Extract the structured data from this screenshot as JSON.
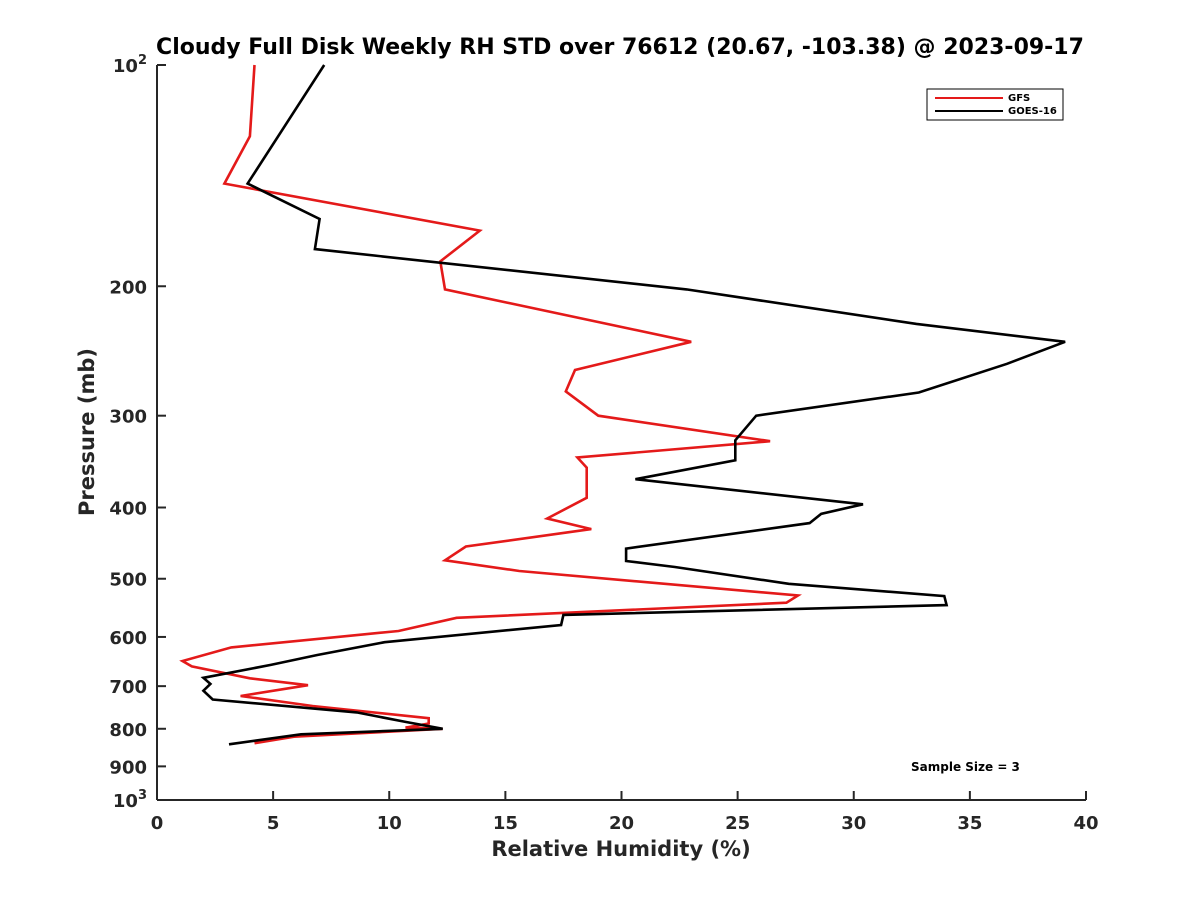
{
  "chart_data": {
    "type": "line",
    "title": "Cloudy Full Disk Weekly RH STD over 76612 (20.67, -103.38) @ 2023-09-17",
    "xlabel": "Relative Humidity (%)",
    "ylabel": "Pressure (mb)",
    "xlim": [
      0,
      40
    ],
    "ylim": [
      100,
      1000
    ],
    "yscale": "log",
    "y_reversed": true,
    "grid": false,
    "x_ticks": [
      {
        "value": 0,
        "label": "0"
      },
      {
        "value": 5,
        "label": "5"
      },
      {
        "value": 10,
        "label": "10"
      },
      {
        "value": 15,
        "label": "15"
      },
      {
        "value": 20,
        "label": "20"
      },
      {
        "value": 25,
        "label": "25"
      },
      {
        "value": 30,
        "label": "30"
      },
      {
        "value": 35,
        "label": "35"
      },
      {
        "value": 40,
        "label": "40"
      }
    ],
    "y_ticks": [
      {
        "value": 100,
        "base": "10",
        "exp": "2"
      },
      {
        "value": 200,
        "base": "200",
        "exp": ""
      },
      {
        "value": 300,
        "base": "300",
        "exp": ""
      },
      {
        "value": 400,
        "base": "400",
        "exp": ""
      },
      {
        "value": 500,
        "base": "500",
        "exp": ""
      },
      {
        "value": 600,
        "base": "600",
        "exp": ""
      },
      {
        "value": 700,
        "base": "700",
        "exp": ""
      },
      {
        "value": 800,
        "base": "800",
        "exp": ""
      },
      {
        "value": 900,
        "base": "900",
        "exp": ""
      },
      {
        "value": 1000,
        "base": "10",
        "exp": "3"
      }
    ],
    "legend_position": "top-right",
    "annotation": "Sample Size = 3",
    "series": [
      {
        "name": "GFS",
        "color": "#e41a1a",
        "points": [
          [
            4.2,
            100
          ],
          [
            4.0,
            125
          ],
          [
            2.9,
            145
          ],
          [
            13.9,
            168
          ],
          [
            12.2,
            185
          ],
          [
            12.4,
            202
          ],
          [
            23.0,
            238
          ],
          [
            18.0,
            260
          ],
          [
            17.6,
            278
          ],
          [
            19.0,
            300
          ],
          [
            26.4,
            325
          ],
          [
            18.1,
            342
          ],
          [
            18.5,
            353
          ],
          [
            18.5,
            388
          ],
          [
            16.8,
            414
          ],
          [
            18.7,
            428
          ],
          [
            13.3,
            452
          ],
          [
            12.4,
            472
          ],
          [
            15.6,
            488
          ],
          [
            27.6,
            527
          ],
          [
            27.1,
            539
          ],
          [
            12.9,
            565
          ],
          [
            10.4,
            589
          ],
          [
            3.2,
            620
          ],
          [
            1.1,
            647
          ],
          [
            1.5,
            658
          ],
          [
            4.0,
            683
          ],
          [
            6.5,
            698
          ],
          [
            3.6,
            722
          ],
          [
            6.7,
            745
          ],
          [
            11.7,
            774
          ],
          [
            11.7,
            787
          ],
          [
            10.7,
            797
          ],
          [
            12.3,
            800
          ],
          [
            5.9,
            820
          ],
          [
            4.2,
            837
          ]
        ]
      },
      {
        "name": "GOES-16",
        "color": "#000000",
        "points": [
          [
            7.2,
            100
          ],
          [
            3.9,
            145
          ],
          [
            7.0,
            162
          ],
          [
            6.8,
            178
          ],
          [
            22.8,
            202
          ],
          [
            32.7,
            225
          ],
          [
            39.1,
            238
          ],
          [
            36.6,
            255
          ],
          [
            32.8,
            279
          ],
          [
            25.8,
            300
          ],
          [
            24.9,
            324
          ],
          [
            24.9,
            345
          ],
          [
            20.6,
            366
          ],
          [
            30.4,
            396
          ],
          [
            28.6,
            408
          ],
          [
            28.1,
            420
          ],
          [
            20.2,
            455
          ],
          [
            20.2,
            473
          ],
          [
            22.3,
            482
          ],
          [
            27.2,
            508
          ],
          [
            33.9,
            528
          ],
          [
            34.0,
            543
          ],
          [
            17.5,
            560
          ],
          [
            17.4,
            578
          ],
          [
            9.8,
            610
          ],
          [
            6.9,
            635
          ],
          [
            4.9,
            655
          ],
          [
            2.0,
            682
          ],
          [
            2.3,
            695
          ],
          [
            2.0,
            710
          ],
          [
            2.4,
            730
          ],
          [
            8.6,
            760
          ],
          [
            10.7,
            783
          ],
          [
            12.3,
            800
          ],
          [
            6.2,
            814
          ],
          [
            3.1,
            840
          ]
        ]
      }
    ]
  }
}
